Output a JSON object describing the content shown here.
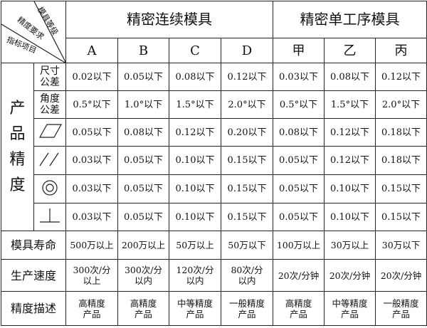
{
  "corner": {
    "top": "模具等级",
    "middle": "精度要求",
    "bottom": "指标项目"
  },
  "groups": [
    {
      "label": "精密连续模具",
      "columns": [
        "A",
        "B",
        "C",
        "D"
      ]
    },
    {
      "label": "精密单工序模具",
      "columns": [
        "甲",
        "乙",
        "丙"
      ]
    }
  ],
  "precision_category": "产品精度",
  "precision_rows": [
    {
      "label": "尺寸公差",
      "icon": null,
      "values": [
        "0.02以下",
        "0.05以下",
        "0.08以下",
        "0.12以下",
        "0.03以下",
        "0.08以下",
        "0.12以下"
      ]
    },
    {
      "label": "角度公差",
      "icon": null,
      "values": [
        "0.5°以下",
        "1.0°以下",
        "1.5°以下",
        "2.0°以下",
        "0.5°以下",
        "1.5°以下",
        "2.0°以下"
      ]
    },
    {
      "label": "",
      "icon": "flatness-parallelogram-icon",
      "values": [
        "0.05以下",
        "0.08以下",
        "0.12以下",
        "0.20以下",
        "0.08以下",
        "0.12以下",
        "0.18以下"
      ]
    },
    {
      "label": "",
      "icon": "parallelism-icon",
      "values": [
        "0.03以下",
        "0.05以下",
        "0.10以下",
        "0.15以下",
        "0.05以下",
        "0.12以下",
        "0.18以下"
      ]
    },
    {
      "label": "",
      "icon": "concentricity-icon",
      "values": [
        "0.03以下",
        "0.05以下",
        "0.10以下",
        "0.15以下",
        "0.05以下",
        "0.10以下",
        "0.15以下"
      ]
    },
    {
      "label": "",
      "icon": "perpendicularity-icon",
      "values": [
        "0.03以下",
        "0.05以下",
        "0.10以下",
        "0.15以下",
        "0.05以下",
        "0.10以下",
        "0.15以下"
      ]
    }
  ],
  "other_rows": [
    {
      "label": "模具寿命",
      "values": [
        [
          "500万以上"
        ],
        [
          "200万以上"
        ],
        [
          "50万以上"
        ],
        [
          "50万以下"
        ],
        [
          "100万以上"
        ],
        [
          "30万以上"
        ],
        [
          "30万以下"
        ]
      ]
    },
    {
      "label": "生产速度",
      "values": [
        [
          "300次/分",
          "以上"
        ],
        [
          "300次/分",
          "以内"
        ],
        [
          "120次/分",
          "以内"
        ],
        [
          "80次/分",
          "以内"
        ],
        [
          "20次/分钟"
        ],
        [
          "20次/分钟"
        ],
        [
          "20次/分钟"
        ]
      ]
    },
    {
      "label": "精度描述",
      "values": [
        [
          "高精度",
          "产品"
        ],
        [
          "高精度",
          "产品"
        ],
        [
          "中等精度",
          "产品"
        ],
        [
          "一般精度",
          "产品"
        ],
        [
          "高精度",
          "产品"
        ],
        [
          "中等精度",
          "产品"
        ],
        [
          "一般精度",
          "产品"
        ]
      ]
    }
  ]
}
